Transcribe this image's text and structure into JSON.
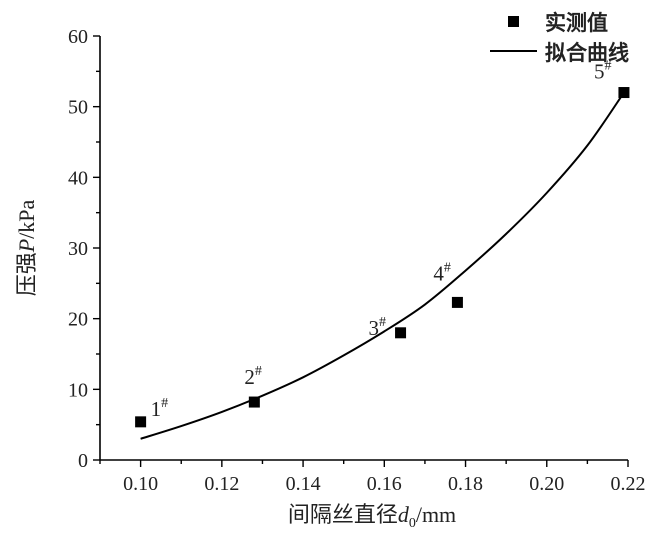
{
  "chart_data": {
    "type": "scatter",
    "xlabel": "间隔丝直径",
    "xlabel_symbol": "d",
    "xlabel_subscript": "0",
    "xlabel_unit": "/mm",
    "ylabel": "压强",
    "ylabel_symbol": "P",
    "ylabel_unit": "/kPa",
    "xlim": [
      0.09,
      0.22
    ],
    "ylim": [
      0,
      60
    ],
    "x_ticks": [
      0.1,
      0.12,
      0.14,
      0.16,
      0.18,
      0.2,
      0.22
    ],
    "x_tick_labels": [
      "0.10",
      "0.12",
      "0.14",
      "0.16",
      "0.18",
      "0.20",
      "0.22"
    ],
    "y_ticks": [
      0,
      10,
      20,
      30,
      40,
      50,
      60
    ],
    "y_tick_labels": [
      "0",
      "10",
      "20",
      "30",
      "40",
      "50",
      "60"
    ],
    "grid": false,
    "legend_position": "top-right",
    "series": [
      {
        "name": "实测值",
        "kind": "markers",
        "marker": "square",
        "x": [
          0.1,
          0.128,
          0.164,
          0.178,
          0.219
        ],
        "y": [
          5.4,
          8.2,
          18.0,
          22.3,
          52.0
        ],
        "point_labels": [
          "1",
          "2",
          "3",
          "4",
          "5"
        ],
        "point_label_sup": "#"
      },
      {
        "name": "拟合曲线",
        "kind": "line",
        "x": [
          0.1,
          0.11,
          0.12,
          0.13,
          0.14,
          0.15,
          0.16,
          0.17,
          0.18,
          0.19,
          0.2,
          0.21,
          0.219
        ],
        "y": [
          3.0,
          4.8,
          6.8,
          9.1,
          11.7,
          14.8,
          18.2,
          22.0,
          26.8,
          32.0,
          37.8,
          44.5,
          52.0
        ]
      }
    ]
  }
}
